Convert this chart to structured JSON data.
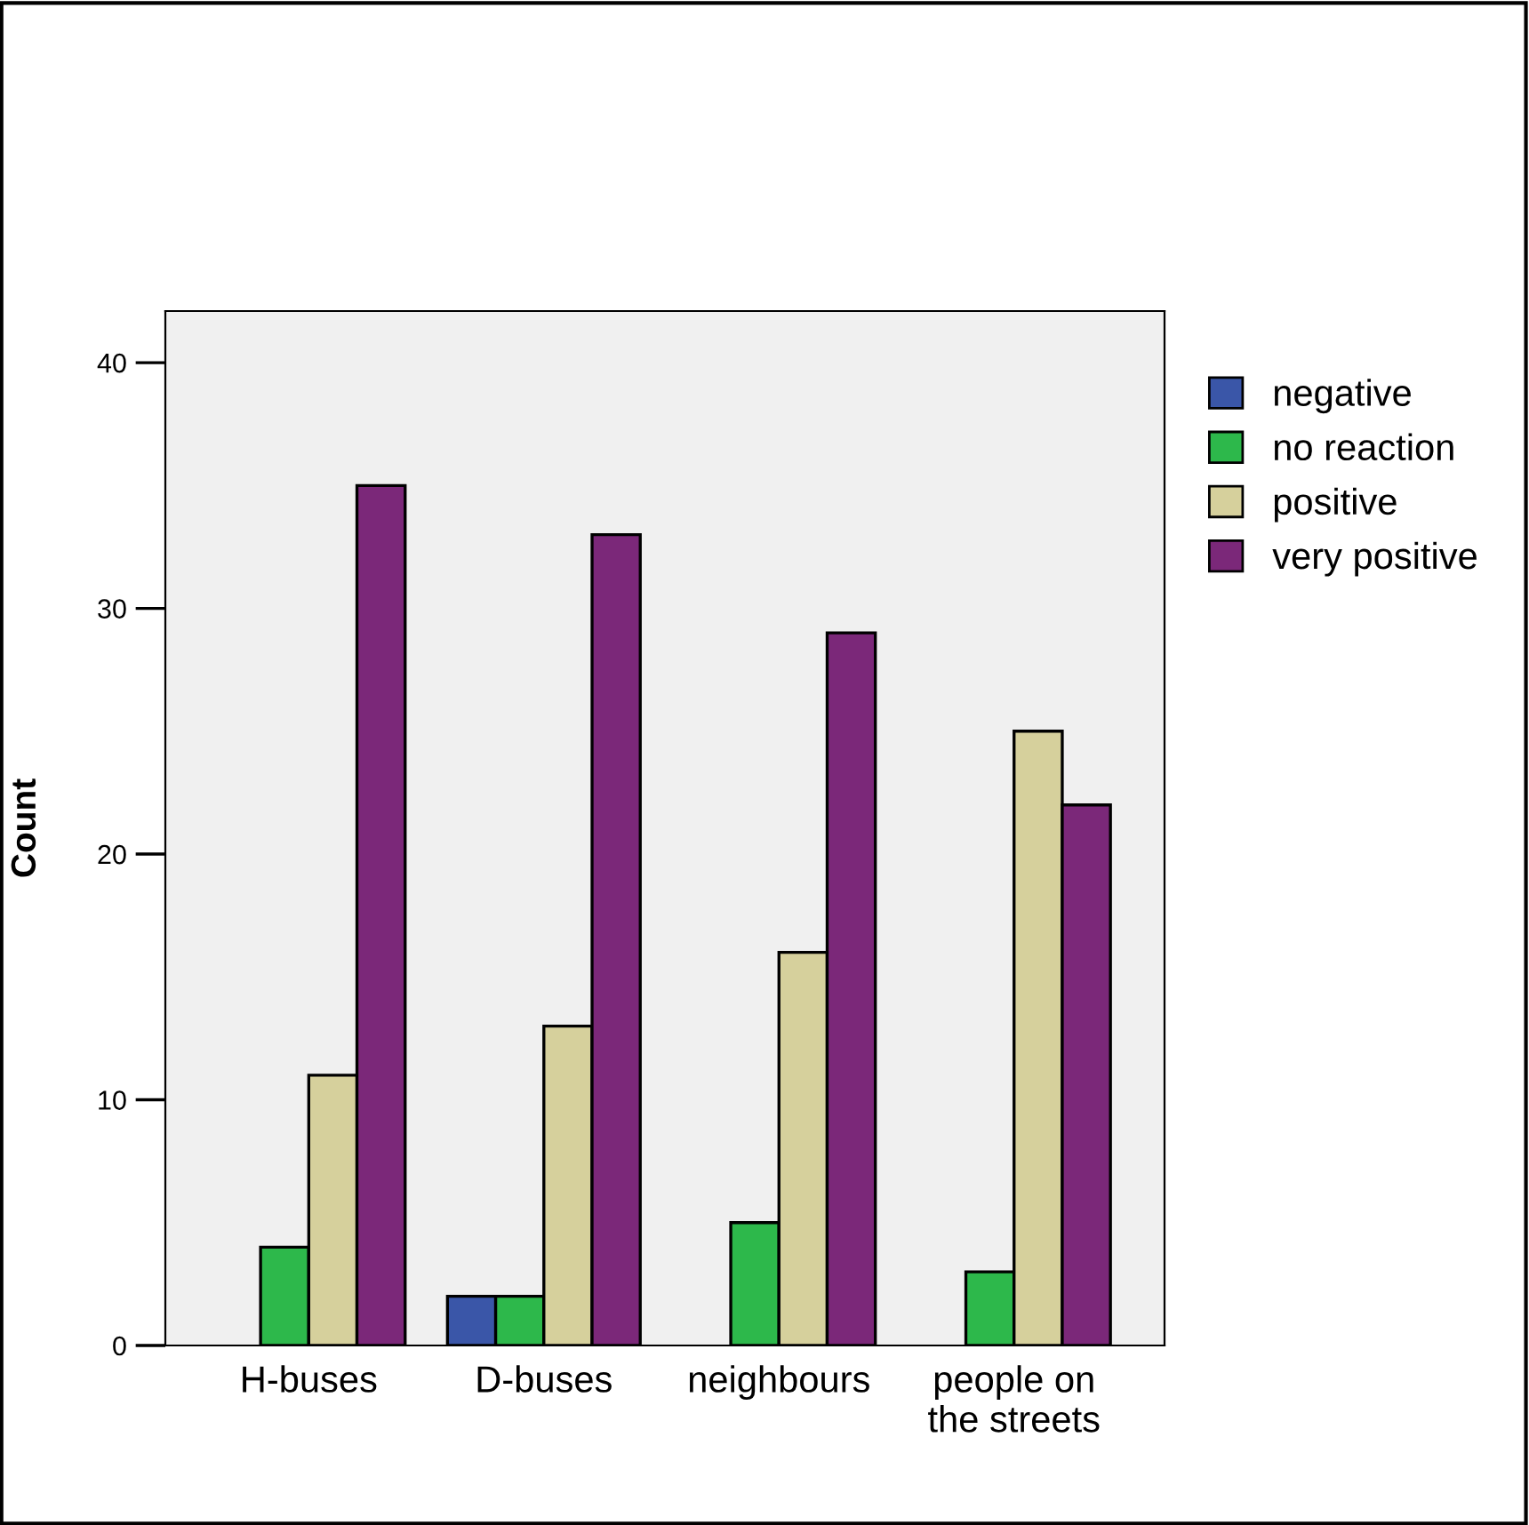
{
  "chart_data": {
    "type": "bar",
    "ylabel": "Count",
    "categories": [
      "H-buses",
      "D-buses",
      "neighbours",
      "people on\nthe streets"
    ],
    "series": [
      {
        "name": "negative",
        "color": "#3a56a8",
        "values": [
          null,
          2,
          null,
          null
        ]
      },
      {
        "name": "no reaction",
        "color": "#2db84b",
        "values": [
          4,
          2,
          5,
          3
        ]
      },
      {
        "name": "positive",
        "color": "#d6d09c",
        "values": [
          11,
          13,
          16,
          25
        ]
      },
      {
        "name": "very positive",
        "color": "#7b2879",
        "values": [
          35,
          33,
          29,
          22
        ]
      }
    ],
    "ylim": [
      0,
      42.1
    ],
    "yticks": [
      0,
      10,
      20,
      30,
      40
    ],
    "grid": false,
    "legend": "top right"
  }
}
